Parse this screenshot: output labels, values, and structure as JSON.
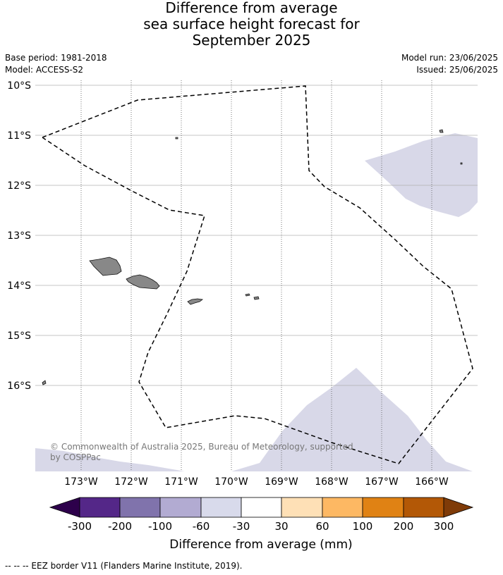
{
  "title": {
    "line1": "Difference from average",
    "line2": "sea surface height forecast for",
    "line3": "September 2025"
  },
  "meta": {
    "base_period": "Base period: 1981-2018",
    "model": "Model: ACCESS-S2",
    "model_run": "Model run: 23/06/2025",
    "issued": "Issued: 25/06/2025"
  },
  "map": {
    "lat_labels": [
      "10°S",
      "11°S",
      "12°S",
      "13°S",
      "14°S",
      "15°S",
      "16°S"
    ],
    "lon_labels": [
      "173°W",
      "172°W",
      "171°W",
      "170°W",
      "169°W",
      "168°W",
      "167°W",
      "166°W"
    ],
    "copyright_line1": "© Commonwealth of Australia 2025, Bureau of Meteorology, supported",
    "copyright_line2": "by COSPPac",
    "land_color": "#888888",
    "anomaly_fill_color": "#d8d8e8"
  },
  "colorbar": {
    "tick_labels": [
      "-300",
      "-200",
      "-100",
      "-60",
      "-30",
      "30",
      "60",
      "100",
      "200",
      "300"
    ],
    "colors": [
      "#2d004b",
      "#542788",
      "#8073ac",
      "#b2abd2",
      "#d8daeb",
      "#ffffff",
      "#fee0b6",
      "#fdb863",
      "#e08214",
      "#b35806",
      "#7f3b08"
    ],
    "label": "Difference from average (mm)"
  },
  "footer": {
    "eez_legend": "--  --  -- EEZ border V11 (Flanders Marine Institute, 2019)."
  }
}
